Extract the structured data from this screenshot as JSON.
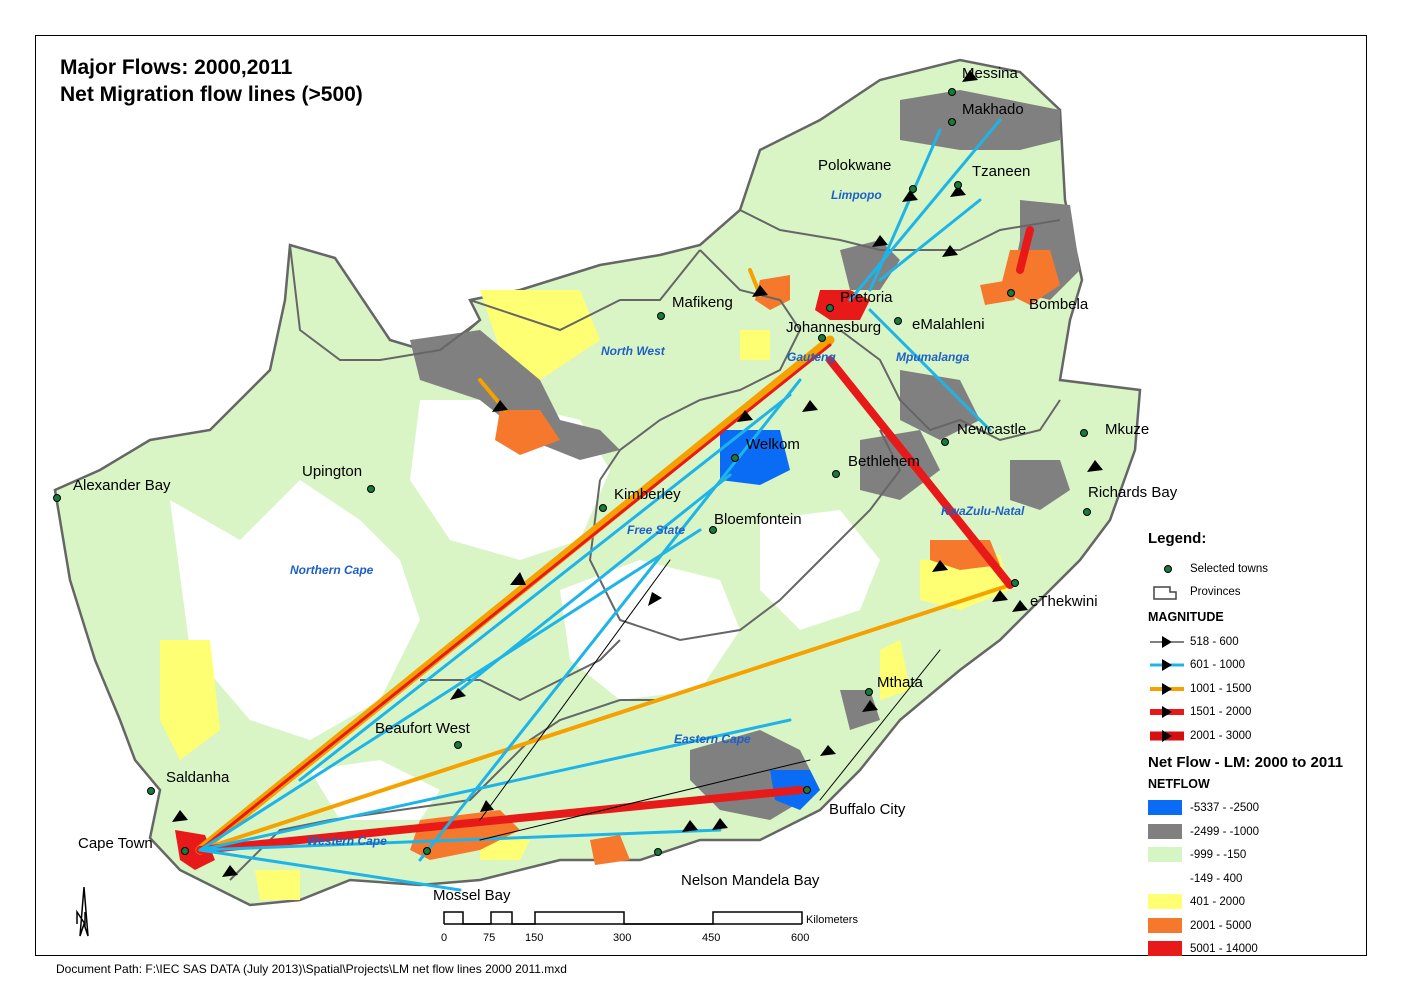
{
  "title": {
    "line1": "Major Flows: 2000,2011",
    "line2": "Net Migration flow lines (>500)"
  },
  "document_path": "Document Path: F:\\IEC SAS DATA (July 2013)\\Spatial\\Projects\\LM net flow lines 2000 2011.mxd",
  "towns": [
    {
      "name": "Messina"
    },
    {
      "name": "Makhado"
    },
    {
      "name": "Polokwane"
    },
    {
      "name": "Tzaneen"
    },
    {
      "name": "Pretoria"
    },
    {
      "name": "Mafikeng"
    },
    {
      "name": "Johannesburg"
    },
    {
      "name": "eMalahleni"
    },
    {
      "name": "Bombela"
    },
    {
      "name": "Welkom"
    },
    {
      "name": "Newcastle"
    },
    {
      "name": "Mkuze"
    },
    {
      "name": "Bethlehem"
    },
    {
      "name": "Upington"
    },
    {
      "name": "Alexander Bay"
    },
    {
      "name": "Kimberley"
    },
    {
      "name": "Richards Bay"
    },
    {
      "name": "Bloemfontein"
    },
    {
      "name": "eThekwini"
    },
    {
      "name": "Mthata"
    },
    {
      "name": "Beaufort West"
    },
    {
      "name": "Saldanha"
    },
    {
      "name": "Buffalo City"
    },
    {
      "name": "Cape Town"
    },
    {
      "name": "Mossel Bay"
    },
    {
      "name": "Nelson Mandela Bay"
    }
  ],
  "provinces": [
    {
      "name": "Limpopo"
    },
    {
      "name": "North West"
    },
    {
      "name": "Gauteng"
    },
    {
      "name": "Mpumalanga"
    },
    {
      "name": "Free State"
    },
    {
      "name": "KwaZulu-Natal"
    },
    {
      "name": "Northern Cape"
    },
    {
      "name": "Eastern Cape"
    },
    {
      "name": "Western Cape"
    }
  ],
  "scale_bar": {
    "ticks": [
      "0",
      "75",
      "150",
      "300",
      "450",
      "600"
    ],
    "unit": "Kilometers"
  },
  "legend": {
    "title": "Legend:",
    "towns_label": "Selected towns",
    "provinces_label": "Provinces",
    "magnitude_title": "MAGNITUDE",
    "magnitude": [
      {
        "label": "518 - 600",
        "color": "#000000"
      },
      {
        "label": "601 - 1000",
        "color": "#1fb4e8"
      },
      {
        "label": "1001 - 1500",
        "color": "#f5a100"
      },
      {
        "label": "1501 - 2000",
        "color": "#e81919"
      },
      {
        "label": "2001 - 3000",
        "color": "#d60f0f"
      }
    ],
    "netflow_title": "Net Flow - LM: 2000 to 2011",
    "netflow_sub": "NETFLOW",
    "netflow": [
      {
        "label": "-5337 - -2500",
        "color": "#0a6cf5"
      },
      {
        "label": "-2499 - -1000",
        "color": "#808080"
      },
      {
        "label": "-999 - -150",
        "color": "#d6f5c4"
      },
      {
        "label": "-149 - 400",
        "color": "#ffffff"
      },
      {
        "label": "401 - 2000",
        "color": "#ffff73"
      },
      {
        "label": "2001 - 5000",
        "color": "#f5782d"
      },
      {
        "label": "5001 - 14000",
        "color": "#e81919"
      }
    ]
  }
}
